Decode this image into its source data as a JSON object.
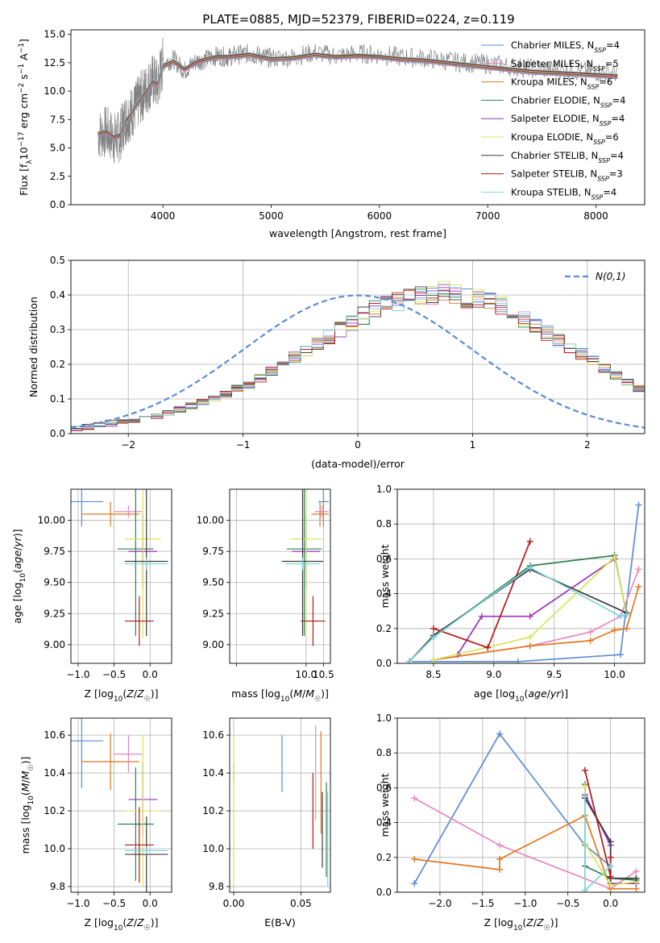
{
  "figure_title": "PLATE=0885, MJD=52379, FIBERID=0224, z=0.119",
  "models": [
    {
      "name": "Chabrier MILES",
      "nssp": "4",
      "color": "#5b8bd8"
    },
    {
      "name": "Salpeter MILES",
      "nssp": "5",
      "color": "#e986c2"
    },
    {
      "name": "Kroupa MILES",
      "nssp": "6",
      "color": "#e1781f"
    },
    {
      "name": "Chabrier ELODIE",
      "nssp": "4",
      "color": "#2f7f55"
    },
    {
      "name": "Salpeter ELODIE",
      "nssp": "4",
      "color": "#9b30b8"
    },
    {
      "name": "Kroupa ELODIE",
      "nssp": "6",
      "color": "#d8e55a"
    },
    {
      "name": "Chabrier STELIB",
      "nssp": "4",
      "color": "#3c3c3c"
    },
    {
      "name": "Salpeter STELIB",
      "nssp": "3",
      "color": "#b01818"
    },
    {
      "name": "Kroupa STELIB",
      "nssp": "4",
      "color": "#7fd6dc"
    }
  ],
  "chart_data": [
    {
      "id": "spectrum",
      "type": "line",
      "xlabel": "wavelength [Angstrom, rest frame]",
      "ylabel": "Flux [f_λ 10^-17 erg cm^-2 s^-1 A^-1]",
      "xlim": [
        3150,
        8450
      ],
      "ylim": [
        0,
        15.4
      ],
      "xticks": [
        4000,
        5000,
        6000,
        7000,
        8000
      ],
      "yticks": [
        0.0,
        2.5,
        5.0,
        7.5,
        10.0,
        12.5,
        15.0
      ],
      "grid": false,
      "legend": "upper-right",
      "data_series": {
        "name": "data",
        "color": "#808080",
        "x": [
          3400,
          3480,
          3550,
          3600,
          3650,
          3700,
          3750,
          3800,
          3850,
          3900,
          3950,
          4000,
          4100,
          4200,
          4300,
          4400,
          4500,
          4600,
          4700,
          4800,
          4900,
          5000,
          5200,
          5400,
          5600,
          5800,
          6000,
          6200,
          6400,
          6600,
          6800,
          7000,
          7200,
          7400,
          7600,
          7800,
          8000,
          8200
        ],
        "y": [
          6.2,
          6.4,
          5.8,
          6.0,
          7.5,
          8.0,
          8.6,
          9.5,
          10.2,
          11.0,
          10.5,
          12.5,
          12.8,
          11.8,
          12.6,
          12.8,
          13.1,
          13.0,
          13.2,
          13.3,
          13.1,
          12.9,
          13.0,
          13.4,
          13.1,
          13.3,
          13.2,
          13.0,
          12.9,
          12.7,
          12.5,
          12.4,
          12.2,
          12.0,
          11.9,
          11.8,
          11.7,
          11.6
        ]
      },
      "model_y": [
        6.2,
        6.4,
        5.9,
        6.1,
        7.3,
        7.9,
        8.7,
        9.4,
        10.0,
        10.8,
        10.6,
        12.2,
        12.6,
        11.9,
        12.5,
        12.8,
        13.0,
        13.0,
        13.1,
        13.2,
        13.0,
        12.8,
        12.9,
        13.2,
        13.0,
        13.1,
        13.0,
        12.8,
        12.7,
        12.5,
        12.3,
        12.1,
        11.9,
        11.7,
        11.6,
        11.5,
        11.4,
        11.3
      ]
    },
    {
      "id": "residuals",
      "type": "step",
      "xlabel": "(data-model)/error",
      "ylabel": "Normed distribution",
      "xlim": [
        -2.5,
        2.5
      ],
      "ylim": [
        0,
        0.5
      ],
      "xticks": [
        -2,
        -1,
        0,
        1,
        2
      ],
      "yticks": [
        0.0,
        0.1,
        0.2,
        0.3,
        0.4,
        0.5
      ],
      "grid": true,
      "legend": "upper-right",
      "gaussian_label": "N(0,1)",
      "gaussian_color": "#5b8bd8",
      "bin_edges_start": -2.5,
      "bin_width": 0.1,
      "density": [
        0.015,
        0.02,
        0.025,
        0.03,
        0.035,
        0.04,
        0.045,
        0.05,
        0.06,
        0.07,
        0.08,
        0.09,
        0.1,
        0.115,
        0.13,
        0.14,
        0.16,
        0.18,
        0.2,
        0.22,
        0.24,
        0.26,
        0.28,
        0.3,
        0.32,
        0.34,
        0.36,
        0.37,
        0.38,
        0.39,
        0.4,
        0.4,
        0.41,
        0.4,
        0.39,
        0.39,
        0.38,
        0.37,
        0.35,
        0.33,
        0.31,
        0.29,
        0.27,
        0.25,
        0.23,
        0.21,
        0.19,
        0.17,
        0.15,
        0.13,
        0.11,
        0.1,
        0.09,
        0.08,
        0.07,
        0.06,
        0.05,
        0.045,
        0.04,
        0.035,
        0.03,
        0.025,
        0.02,
        0.02,
        0.015,
        0.015,
        0.01,
        0.01,
        0.01,
        0.01,
        0.01
      ]
    },
    {
      "id": "age_vs_Z",
      "type": "errorbar",
      "xlabel": "Z [log10(Z/Z☉)]",
      "ylabel": "age  [log10(age/yr)]",
      "xlim": [
        -1.1,
        0.3
      ],
      "ylim": [
        8.85,
        10.25
      ],
      "xticks": [
        -1.0,
        -0.5,
        0.0
      ],
      "yticks": [
        9.0,
        9.25,
        9.5,
        9.75,
        10.0
      ],
      "grid": true,
      "points": [
        {
          "x": -0.95,
          "y": 10.15,
          "xe": 0.3,
          "ye": 0.2
        },
        {
          "x": -0.3,
          "y": 10.07,
          "xe": 0.2,
          "ye": 0.05
        },
        {
          "x": -0.55,
          "y": 10.05,
          "xe": 0.4,
          "ye": 0.1
        },
        {
          "x": -0.2,
          "y": 9.77,
          "xe": 0.25,
          "ye": 0.7
        },
        {
          "x": -0.1,
          "y": 9.75,
          "xe": 0.2,
          "ye": 0.3
        },
        {
          "x": -0.1,
          "y": 9.85,
          "xe": 0.25,
          "ye": 0.8
        },
        {
          "x": -0.05,
          "y": 9.67,
          "xe": 0.3,
          "ye": 0.6
        },
        {
          "x": -0.15,
          "y": 9.19,
          "xe": 0.2,
          "ye": 0.2
        },
        {
          "x": -0.05,
          "y": 9.65,
          "xe": 0.3,
          "ye": 0.05
        }
      ]
    },
    {
      "id": "age_vs_mass",
      "type": "errorbar",
      "xlabel": "mass [log10(M/M☉)]",
      "ylabel": "",
      "xlim": [
        7.8,
        10.7
      ],
      "ylim": [
        8.85,
        10.25
      ],
      "xticks": [
        8,
        10.0,
        10.5
      ],
      "yticks": [
        9.0,
        9.25,
        9.5,
        9.75,
        10.0
      ],
      "xticklabels": [
        "",
        "10.0",
        "10.5"
      ],
      "grid": true,
      "points": [
        {
          "x": 10.5,
          "y": 10.15,
          "xe": 0.15,
          "ye": 0.2
        },
        {
          "x": 10.45,
          "y": 10.07,
          "xe": 0.2,
          "ye": 0.05
        },
        {
          "x": 10.4,
          "y": 10.05,
          "xe": 0.25,
          "ye": 0.1
        },
        {
          "x": 9.95,
          "y": 9.77,
          "xe": 0.5,
          "ye": 0.7
        },
        {
          "x": 10.0,
          "y": 9.75,
          "xe": 0.4,
          "ye": 0.3
        },
        {
          "x": 10.0,
          "y": 9.85,
          "xe": 0.45,
          "ye": 0.8
        },
        {
          "x": 9.9,
          "y": 9.67,
          "xe": 0.6,
          "ye": 0.6
        },
        {
          "x": 10.2,
          "y": 9.19,
          "xe": 0.35,
          "ye": 0.2
        },
        {
          "x": 9.9,
          "y": 9.65,
          "xe": 0.5,
          "ye": 0.05
        }
      ]
    },
    {
      "id": "weight_vs_age",
      "type": "line",
      "xlabel": "age  [log10(age/yr)]",
      "ylabel": "mass weight",
      "xlim": [
        8.2,
        10.25
      ],
      "ylim": [
        0,
        1.0
      ],
      "xticks": [
        8.5,
        9.0,
        9.5,
        10.0
      ],
      "yticks": [
        0.0,
        0.2,
        0.4,
        0.6,
        0.8,
        1.0
      ],
      "grid": true,
      "series": [
        {
          "x": [
            8.3,
            9.2,
            10.05,
            10.2
          ],
          "y": [
            0.01,
            0.01,
            0.05,
            0.91
          ]
        },
        {
          "x": [
            8.5,
            9.3,
            9.8,
            10.05,
            10.2
          ],
          "y": [
            0.02,
            0.1,
            0.18,
            0.27,
            0.54
          ]
        },
        {
          "x": [
            8.5,
            9.3,
            9.8,
            10.0,
            10.1,
            10.2
          ],
          "y": [
            0.02,
            0.1,
            0.13,
            0.19,
            0.2,
            0.44
          ]
        },
        {
          "x": [
            8.3,
            8.5,
            9.3,
            10.0,
            10.1
          ],
          "y": [
            0.01,
            0.15,
            0.56,
            0.62,
            0.28
          ]
        },
        {
          "x": [
            8.7,
            8.9,
            9.3,
            10.0
          ],
          "y": [
            0.05,
            0.27,
            0.27,
            0.6
          ]
        },
        {
          "x": [
            8.5,
            9.3,
            10.0,
            10.1
          ],
          "y": [
            0.02,
            0.15,
            0.61,
            0.28
          ]
        },
        {
          "x": [
            8.3,
            8.5,
            9.3,
            10.1
          ],
          "y": [
            0.01,
            0.16,
            0.54,
            0.29
          ]
        },
        {
          "x": [
            8.5,
            8.95,
            9.3
          ],
          "y": [
            0.2,
            0.09,
            0.7
          ]
        },
        {
          "x": [
            8.3,
            8.5,
            9.3,
            10.05,
            10.1
          ],
          "y": [
            0.01,
            0.15,
            0.55,
            0.27,
            0.28
          ]
        }
      ]
    },
    {
      "id": "mass_vs_Z",
      "type": "errorbar",
      "xlabel": "Z [log10(Z/Z☉)]",
      "ylabel": "mass [log10(M/M☉)]",
      "xlim": [
        -1.1,
        0.3
      ],
      "ylim": [
        9.77,
        10.69
      ],
      "xticks": [
        -1.0,
        -0.5,
        0.0
      ],
      "yticks": [
        9.8,
        10.0,
        10.2,
        10.4,
        10.6
      ],
      "grid": true,
      "points": [
        {
          "x": -0.95,
          "y": 10.57,
          "xe": 0.3,
          "ye": 0.25
        },
        {
          "x": -0.3,
          "y": 10.5,
          "xe": 0.2,
          "ye": 0.1
        },
        {
          "x": -0.55,
          "y": 10.46,
          "xe": 0.4,
          "ye": 0.15
        },
        {
          "x": -0.2,
          "y": 10.13,
          "xe": 0.25,
          "ye": 0.3
        },
        {
          "x": -0.1,
          "y": 10.26,
          "xe": 0.2,
          "ye": 0.2
        },
        {
          "x": -0.1,
          "y": 10.2,
          "xe": 0.25,
          "ye": 0.4
        },
        {
          "x": -0.05,
          "y": 9.97,
          "xe": 0.3,
          "ye": 0.2
        },
        {
          "x": -0.15,
          "y": 10.02,
          "xe": 0.2,
          "ye": 0.2
        },
        {
          "x": -0.05,
          "y": 9.99,
          "xe": 0.3,
          "ye": 0.02
        }
      ]
    },
    {
      "id": "mass_vs_EBV",
      "type": "errorbar",
      "xlabel": "E(B-V)",
      "ylabel": "",
      "xlim": [
        -0.003,
        0.072
      ],
      "ylim": [
        9.77,
        10.69
      ],
      "xticks": [
        0.0,
        0.05
      ],
      "yticks": [
        9.8,
        10.0,
        10.2,
        10.4,
        10.6
      ],
      "grid": true,
      "points": [
        {
          "x": 0.036,
          "y": 10.45,
          "xe": 0,
          "ye": 0.15
        },
        {
          "x": 0.061,
          "y": 10.4,
          "xe": 0,
          "ye": 0.25
        },
        {
          "x": 0.065,
          "y": 10.35,
          "xe": 0,
          "ye": 0.27
        },
        {
          "x": 0.069,
          "y": 10.1,
          "xe": 0,
          "ye": 0.25
        },
        {
          "x": 0.0,
          "y": 10.4,
          "xe": 0,
          "ye": 0.05
        },
        {
          "x": 0.0,
          "y": 10.2,
          "xe": 0,
          "ye": 0.4
        },
        {
          "x": 0.066,
          "y": 10.1,
          "xe": 0,
          "ye": 0.2
        },
        {
          "x": 0.059,
          "y": 10.2,
          "xe": 0,
          "ye": 0.2
        },
        {
          "x": 0.07,
          "y": 10.05,
          "xe": 0,
          "ye": 0.25
        }
      ]
    },
    {
      "id": "weight_vs_Z",
      "type": "line",
      "xlabel": "Z [log10(Z/Z☉)]",
      "ylabel": "mass weight",
      "xlim": [
        -2.5,
        0.4
      ],
      "ylim": [
        0,
        1.0
      ],
      "xticks": [
        -2.0,
        -1.5,
        -1.0,
        -0.5,
        0.0
      ],
      "yticks": [
        0.0,
        0.2,
        0.4,
        0.6,
        0.8,
        1.0
      ],
      "grid": true,
      "series": [
        {
          "x": [
            -2.3,
            -1.3,
            -0.3,
            0.0
          ],
          "y": [
            0.05,
            0.91,
            0.27,
            0.15
          ]
        },
        {
          "x": [
            -2.3,
            -1.3,
            0.0,
            0.3
          ],
          "y": [
            0.54,
            0.27,
            0.02,
            0.12
          ]
        },
        {
          "x": [
            -2.3,
            -1.3,
            -1.3,
            -0.3,
            0.0,
            0.3
          ],
          "y": [
            0.19,
            0.13,
            0.19,
            0.44,
            0.02,
            0.02
          ]
        },
        {
          "x": [
            -0.3,
            -0.3,
            0.0,
            0.3
          ],
          "y": [
            0.62,
            0.15,
            0.08,
            0.07
          ]
        },
        {
          "x": [
            -0.3,
            0.0,
            0.0,
            0.3
          ],
          "y": [
            0.56,
            0.27,
            0.05,
            0.05
          ]
        },
        {
          "x": [
            -0.3,
            -0.3,
            0.0,
            0.3
          ],
          "y": [
            0.61,
            0.28,
            0.04,
            0.06
          ]
        },
        {
          "x": [
            -0.3,
            0.0,
            0.0,
            0.3
          ],
          "y": [
            0.54,
            0.29,
            0.08,
            0.08
          ]
        },
        {
          "x": [
            -0.3,
            0.0,
            0.0
          ],
          "y": [
            0.7,
            0.09,
            0.2
          ]
        },
        {
          "x": [
            -0.3,
            -0.3,
            0.0
          ],
          "y": [
            0.55,
            0.01,
            0.15
          ]
        }
      ]
    }
  ]
}
